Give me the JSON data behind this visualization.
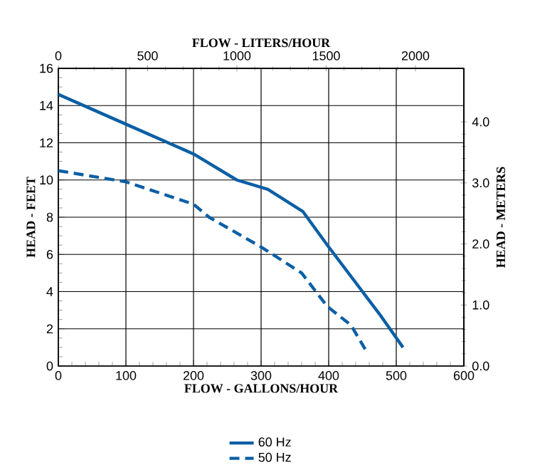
{
  "chart_data": {
    "type": "line",
    "xlabel": "FLOW - GALLONS/HOUR",
    "x2label": "FLOW - LITERS/HOUR",
    "ylabel": "HEAD - FEET",
    "y2label": "HEAD - METERS",
    "xlim": [
      0,
      600
    ],
    "xticks": [
      0,
      100,
      200,
      300,
      400,
      500,
      600
    ],
    "x2lim": [
      0,
      2271
    ],
    "x2ticks": [
      0,
      500,
      1000,
      1500,
      2000
    ],
    "ylim": [
      0,
      16
    ],
    "yticks": [
      0,
      2,
      4,
      6,
      8,
      10,
      12,
      14,
      16
    ],
    "y2lim": [
      0,
      4.877
    ],
    "y2ticks": [
      {
        "value": 0,
        "label": "0.0"
      },
      {
        "value": 1,
        "label": "1.0"
      },
      {
        "value": 2,
        "label": "2.0"
      },
      {
        "value": 3,
        "label": "3.0"
      },
      {
        "value": 4,
        "label": "4.0"
      }
    ],
    "grid": true,
    "legend": "bottom",
    "marker": "none",
    "series": [
      {
        "name": "60 Hz",
        "color": "#0b5fa5",
        "line_style": "solid",
        "x": [
          0,
          100,
          200,
          264,
          310,
          362,
          398,
          450,
          475,
          510
        ],
        "values": [
          14.6,
          13.0,
          11.4,
          10.0,
          9.5,
          8.3,
          6.5,
          4.0,
          2.8,
          1.0
        ]
      },
      {
        "name": "50 Hz",
        "color": "#0b5fa5",
        "line_style": "dashed",
        "x": [
          0,
          100,
          200,
          223,
          300,
          360,
          398,
          433,
          454
        ],
        "values": [
          10.5,
          9.9,
          8.7,
          8.0,
          6.4,
          5.0,
          3.2,
          2.2,
          0.9
        ]
      }
    ]
  }
}
